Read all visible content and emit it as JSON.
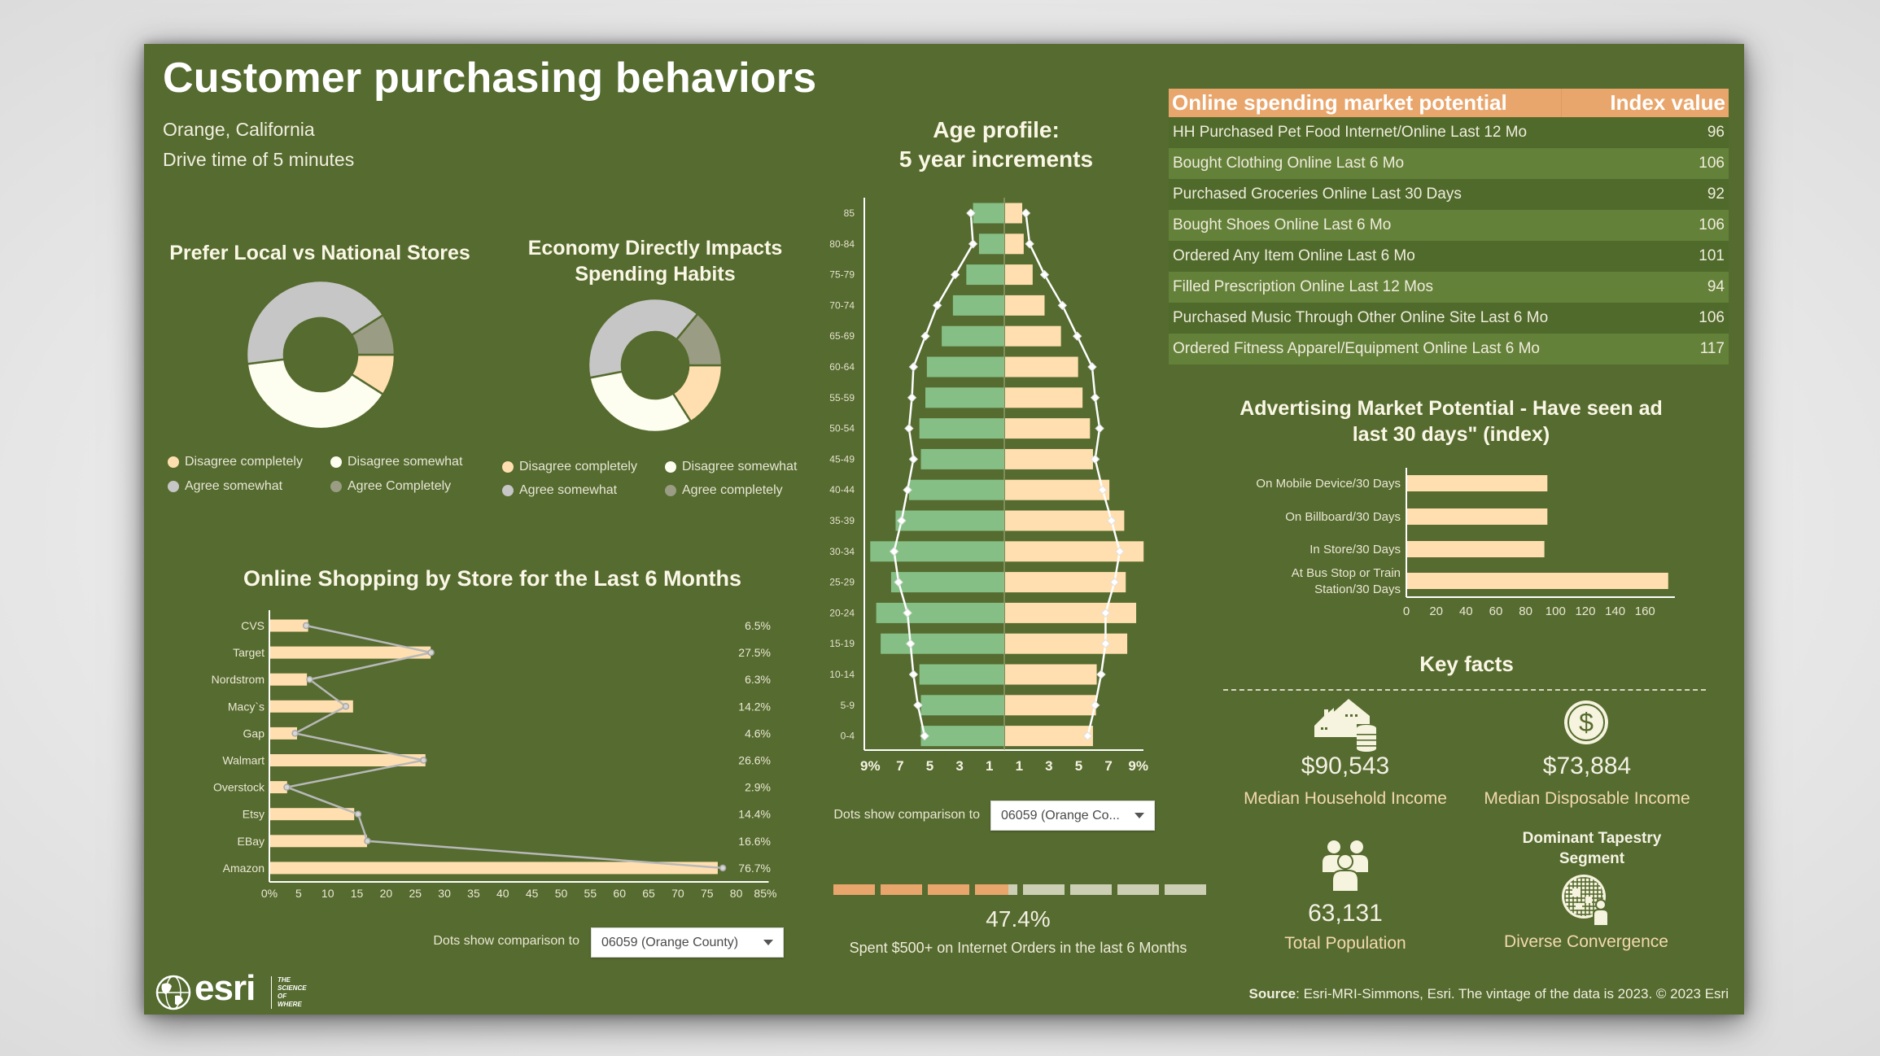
{
  "header": {
    "title": "Customer purchasing behaviors",
    "location": "Orange, California",
    "drive_time": "Drive time of 5 minutes"
  },
  "colors": {
    "panel": "#556b2f",
    "peach": "#ffdfb0",
    "green_bar": "#86bf86",
    "orange": "#e9a66c",
    "gray_light": "#c6c6c6",
    "gray_dark": "#9a9c84",
    "cream": "#fdfdf0",
    "progress_empty": "#cdcfb5"
  },
  "chart_data": [
    {
      "id": "prefer-local",
      "type": "pie",
      "title": "Prefer Local vs National Stores",
      "categories": [
        "Disagree completely",
        "Disagree somewhat",
        "Agree somewhat",
        "Agree Completely"
      ],
      "values": [
        9,
        39,
        43,
        9
      ],
      "colors": [
        "#ffdfb0",
        "#fdfdf0",
        "#c6c6c6",
        "#9a9c84"
      ],
      "legend": "bottom"
    },
    {
      "id": "economy-impacts",
      "type": "pie",
      "title_lines": [
        "Economy Directly Impacts",
        "Spending Habits"
      ],
      "categories": [
        "Disagree completely",
        "Disagree somewhat",
        "Agree somewhat",
        "Agree completely"
      ],
      "values": [
        16,
        31,
        39,
        14
      ],
      "colors": [
        "#ffdfb0",
        "#fdfdf0",
        "#c6c6c6",
        "#9a9c84"
      ],
      "legend": "bottom"
    },
    {
      "id": "online-shopping",
      "type": "bar",
      "orientation": "horizontal",
      "title": "Online Shopping by Store for the Last 6 Months",
      "categories": [
        "CVS",
        "Target",
        "Nordstrom",
        "Macy`s",
        "Gap",
        "Walmart",
        "Overstock",
        "Etsy",
        "EBay",
        "Amazon"
      ],
      "values": [
        6.5,
        27.5,
        6.3,
        14.2,
        4.6,
        26.6,
        2.9,
        14.4,
        16.6,
        76.7
      ],
      "value_labels": [
        "6.5%",
        "27.5%",
        "6.3%",
        "14.2%",
        "4.6%",
        "26.6%",
        "2.9%",
        "14.4%",
        "16.6%",
        "76.7%"
      ],
      "comparison": [
        6.3,
        27.7,
        6.9,
        13.1,
        4.4,
        26.4,
        3.0,
        15.2,
        16.8,
        77.7
      ],
      "xlim": [
        0,
        85
      ],
      "xticks": [
        "0%",
        "5",
        "10",
        "15",
        "20",
        "25",
        "30",
        "35",
        "40",
        "45",
        "50",
        "55",
        "60",
        "65",
        "70",
        "75",
        "80",
        "85%"
      ],
      "comparison_label": "Dots show comparison to",
      "comparison_selected": "06059 (Orange County)"
    },
    {
      "id": "age-profile",
      "type": "bar",
      "orientation": "horizontal-diverging",
      "title_lines": [
        "Age profile:",
        "5 year increments"
      ],
      "categories": [
        "85",
        "80-84",
        "75-79",
        "70-74",
        "65-69",
        "60-64",
        "55-59",
        "50-54",
        "45-49",
        "40-44",
        "35-39",
        "30-34",
        "25-29",
        "20-24",
        "15-19",
        "10-14",
        "5-9",
        "0-4"
      ],
      "series": [
        {
          "name": "left",
          "values": [
            2.1,
            1.7,
            2.55,
            3.45,
            4.2,
            5.2,
            5.3,
            5.7,
            5.6,
            6.4,
            7.3,
            9.0,
            7.6,
            8.6,
            8.3,
            5.7,
            5.6,
            5.6
          ]
        },
        {
          "name": "right",
          "values": [
            1.15,
            1.25,
            1.85,
            2.65,
            3.75,
            4.9,
            5.2,
            5.7,
            5.9,
            7.0,
            8.0,
            9.3,
            8.1,
            8.8,
            8.2,
            6.15,
            6.1,
            5.9
          ]
        }
      ],
      "comparison": {
        "left": [
          2.25,
          2.1,
          3.3,
          4.5,
          5.3,
          6.1,
          6.2,
          6.4,
          6.1,
          6.5,
          6.9,
          7.4,
          7.1,
          6.5,
          6.3,
          6.1,
          5.8,
          5.35
        ],
        "right": [
          1.45,
          1.7,
          2.7,
          3.9,
          4.9,
          5.9,
          6.1,
          6.4,
          6.1,
          6.6,
          7.2,
          7.75,
          7.4,
          6.8,
          6.8,
          6.5,
          6.1,
          5.6
        ]
      },
      "xlim": [
        -9.5,
        9.5
      ],
      "xticks": [
        "9%",
        "7",
        "5",
        "3",
        "1",
        "1",
        "3",
        "5",
        "7",
        "9%"
      ],
      "comparison_label": "Dots show comparison to",
      "comparison_selected": "06059 (Orange Co..."
    },
    {
      "id": "advertising",
      "type": "bar",
      "orientation": "horizontal",
      "title_lines": [
        "Advertising Market Potential - Have seen ad",
        "last 30 days\" (index)"
      ],
      "categories": [
        "On Mobile Device/30 Days",
        "On Billboard/30 Days",
        "In Store/30 Days",
        "At Bus Stop or Train Station/30 Days"
      ],
      "category_lines": [
        [
          "On Mobile Device/30 Days"
        ],
        [
          "On Billboard/30 Days"
        ],
        [
          "In Store/30 Days"
        ],
        [
          "At Bus Stop or Train",
          "Station/30 Days"
        ]
      ],
      "values": [
        94,
        94,
        92,
        175
      ],
      "xlim": [
        0,
        175
      ],
      "xticks": [
        "0",
        "20",
        "40",
        "60",
        "80",
        "100",
        "120",
        "140",
        "160"
      ]
    }
  ],
  "progress": {
    "value_percent": 47.4,
    "label": "47.4%",
    "caption": "Spent $500+ on Internet Orders in the last 6 Months",
    "segments": 8
  },
  "market_potential": {
    "header_label": "Online spending market potential",
    "header_value": "Index value",
    "rows": [
      {
        "label": "HH Purchased Pet Food Internet/Online Last 12 Mo",
        "value": "96"
      },
      {
        "label": "Bought Clothing Online Last 6 Mo",
        "value": "106"
      },
      {
        "label": "Purchased Groceries Online Last 30 Days",
        "value": "92"
      },
      {
        "label": "Bought Shoes Online Last 6 Mo",
        "value": "106"
      },
      {
        "label": "Ordered Any Item Online Last 6 Mo",
        "value": "101"
      },
      {
        "label": "Filled Prescription Online Last 12 Mos",
        "value": "94"
      },
      {
        "label": "Purchased Music Through Other Online Site Last 6 Mo",
        "value": "106"
      },
      {
        "label": "Ordered Fitness Apparel/Equipment Online Last 6 Mo",
        "value": "117"
      }
    ]
  },
  "key_facts": {
    "title": "Key facts",
    "household_income": {
      "value": "$90,543",
      "label": "Median Household Income",
      "icon": "house-coins-icon"
    },
    "disposable_income": {
      "value": "$73,884",
      "label": "Median Disposable Income",
      "icon": "dollar-coin-icon"
    },
    "population": {
      "value": "63,131",
      "label": "Total Population",
      "icon": "people-icon"
    },
    "tapestry": {
      "heading_lines": [
        "Dominant Tapestry",
        "Segment"
      ],
      "label": "Diverse Convergence",
      "icon": "globe-person-icon"
    }
  },
  "footer": {
    "source_bold": "Source",
    "source_text": ": Esri-MRI-Simmons, Esri. The vintage of the data is 2023. © 2023 Esri",
    "logo_text": "esri",
    "logo_tagline": [
      "THE",
      "SCIENCE",
      "OF",
      "WHERE"
    ]
  }
}
